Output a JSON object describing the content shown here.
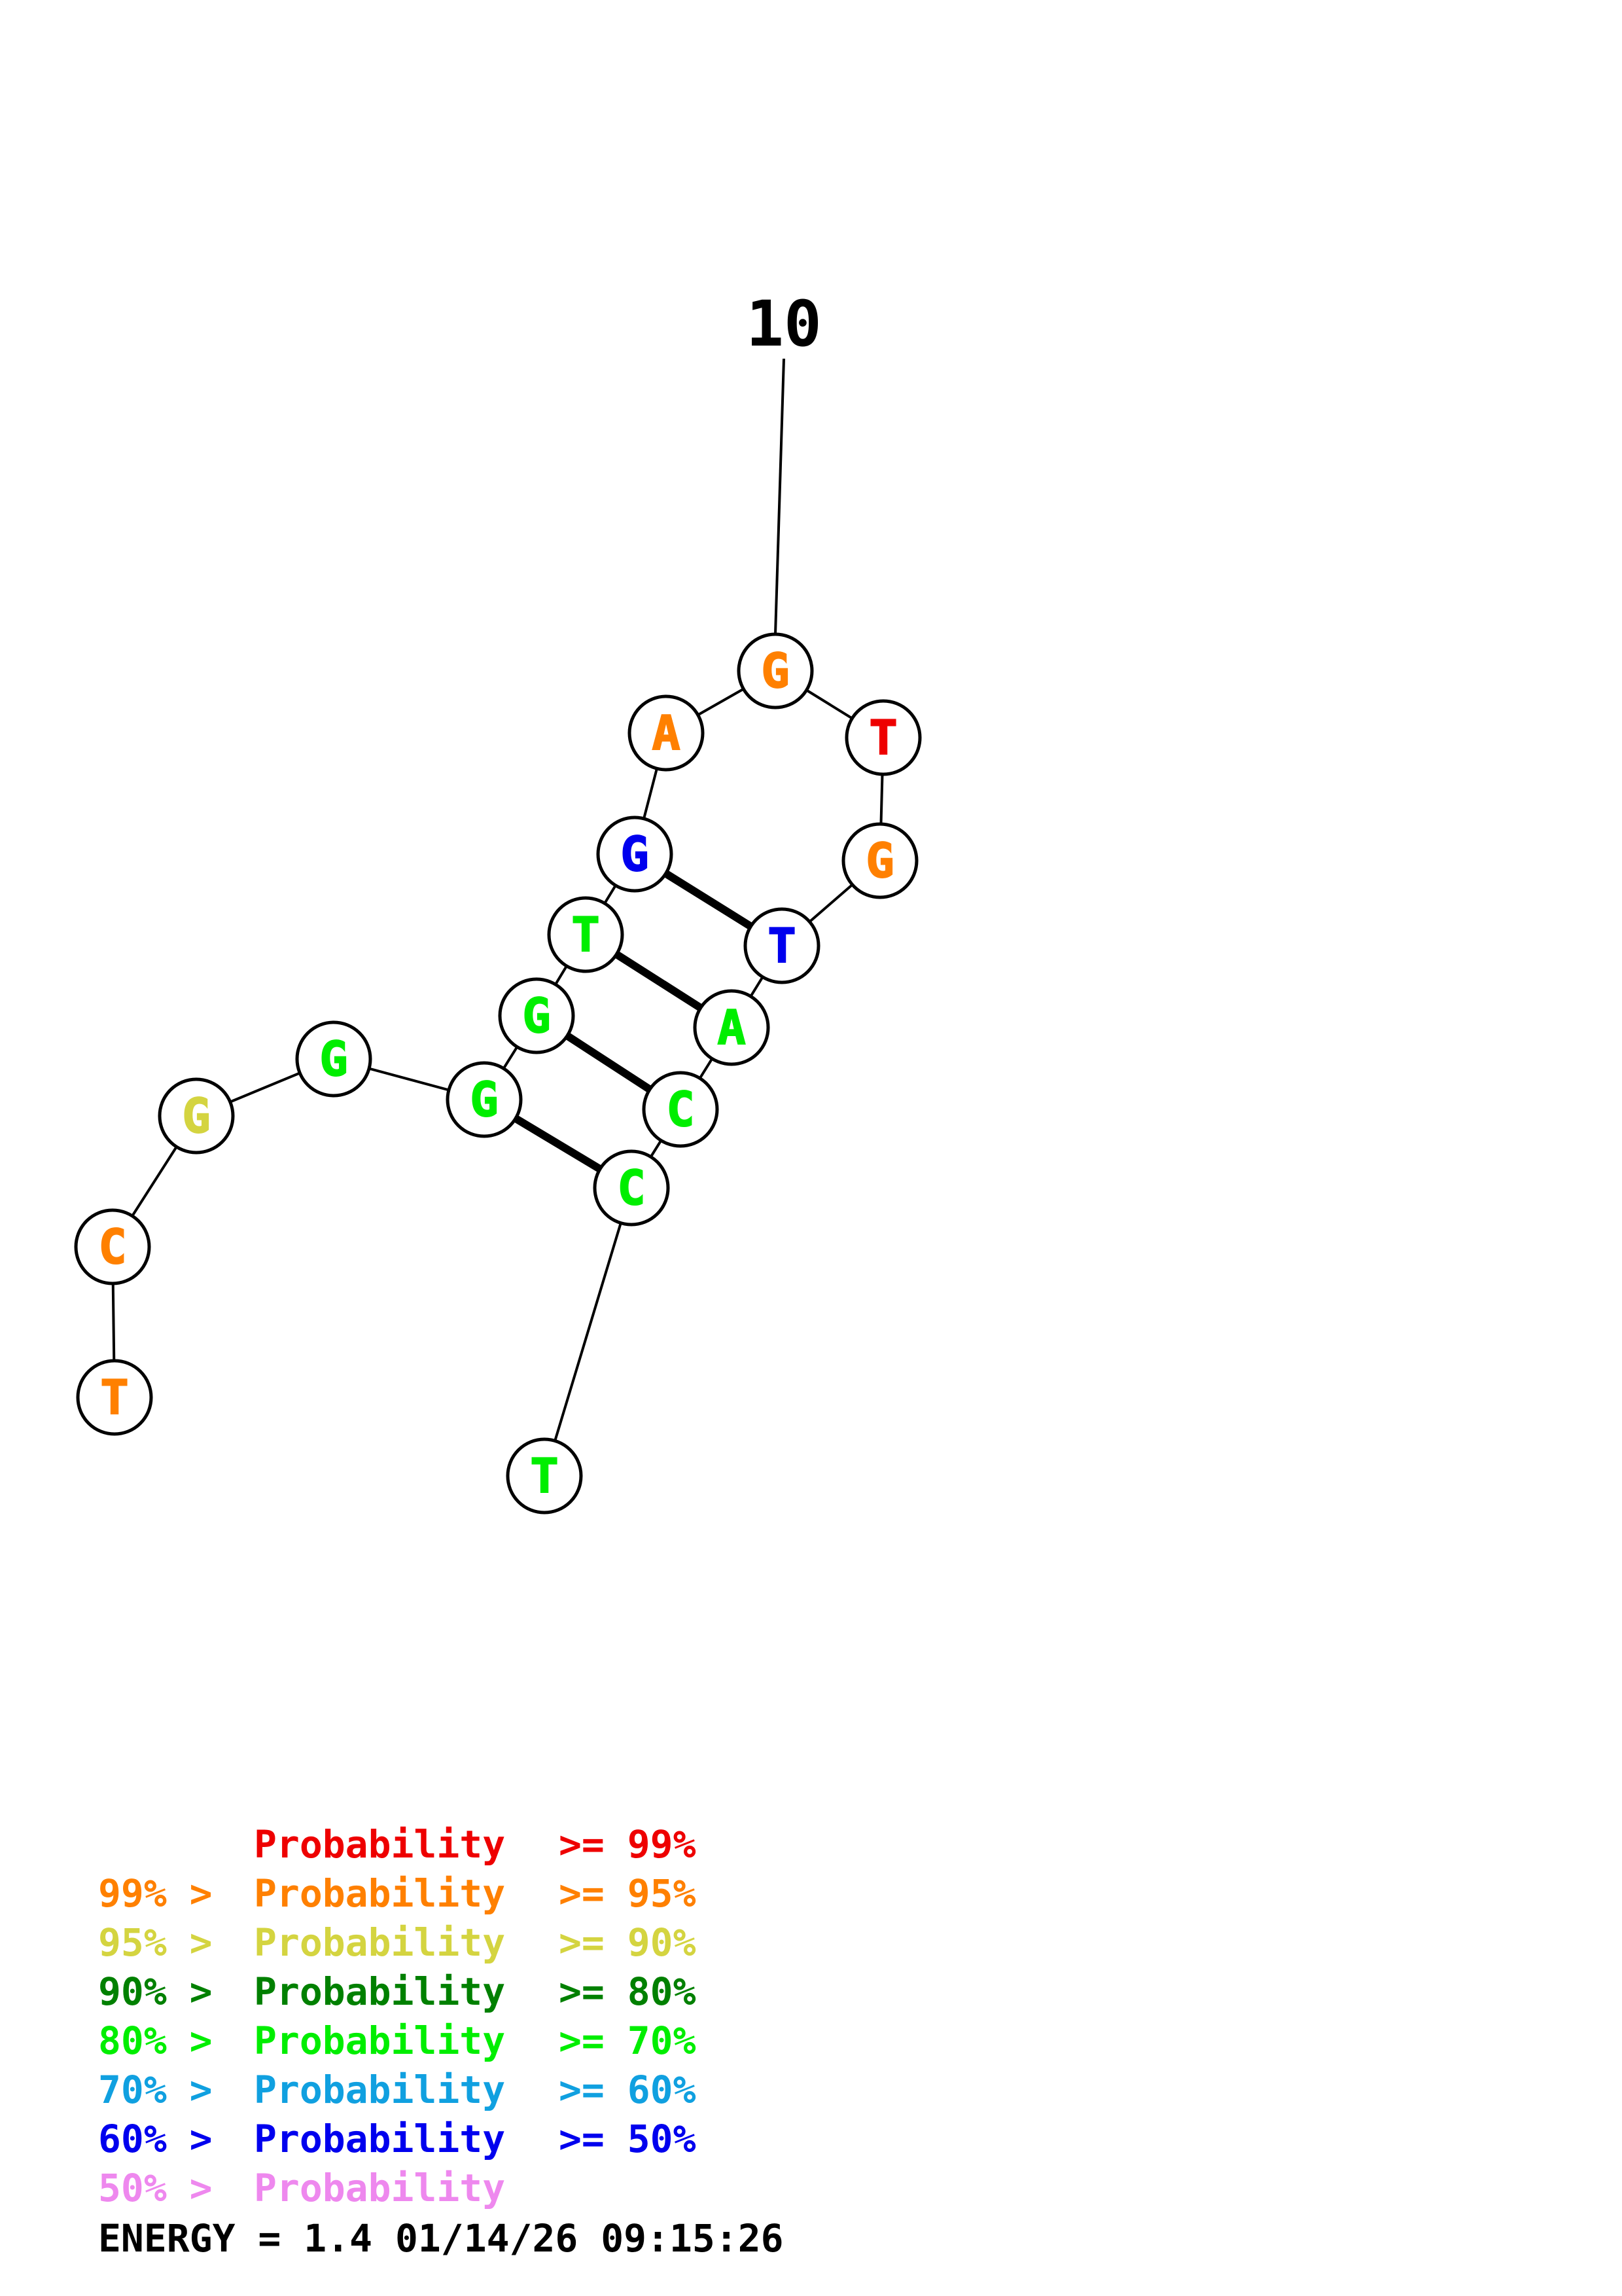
{
  "structure": {
    "nucleotides": [
      {
        "index": 1,
        "base": "T",
        "color": "#FF8000"
      },
      {
        "index": 2,
        "base": "C",
        "color": "#FF8000"
      },
      {
        "index": 3,
        "base": "G",
        "color": "#D4D440"
      },
      {
        "index": 4,
        "base": "G",
        "color": "#00EE00"
      },
      {
        "index": 5,
        "base": "G",
        "color": "#00EE00"
      },
      {
        "index": 6,
        "base": "G",
        "color": "#00EE00"
      },
      {
        "index": 7,
        "base": "T",
        "color": "#00EE00"
      },
      {
        "index": 8,
        "base": "G",
        "color": "#0000EE"
      },
      {
        "index": 9,
        "base": "A",
        "color": "#FF8000"
      },
      {
        "index": 10,
        "base": "G",
        "color": "#FF8000"
      },
      {
        "index": 11,
        "base": "T",
        "color": "#EE0000"
      },
      {
        "index": 12,
        "base": "G",
        "color": "#FF8000"
      },
      {
        "index": 13,
        "base": "T",
        "color": "#0000EE"
      },
      {
        "index": 14,
        "base": "A",
        "color": "#00EE00"
      },
      {
        "index": 15,
        "base": "C",
        "color": "#00EE00"
      },
      {
        "index": 16,
        "base": "C",
        "color": "#00EE00"
      },
      {
        "index": 17,
        "base": "T",
        "color": "#00EE00"
      }
    ],
    "base_pairs": [
      [
        5,
        16
      ],
      [
        6,
        15
      ],
      [
        7,
        14
      ],
      [
        8,
        13
      ]
    ],
    "position_markers": [
      {
        "index": 10,
        "label": "10"
      }
    ]
  },
  "legend": [
    {
      "prefix": "",
      "label": "Probability",
      "suffix": ">= 99%",
      "color": "#EE0000"
    },
    {
      "prefix": "99% >",
      "label": "Probability",
      "suffix": ">= 95%",
      "color": "#FF8000"
    },
    {
      "prefix": "95% >",
      "label": "Probability",
      "suffix": ">= 90%",
      "color": "#D4D440"
    },
    {
      "prefix": "90% >",
      "label": "Probability",
      "suffix": ">= 80%",
      "color": "#008000"
    },
    {
      "prefix": "80% >",
      "label": "Probability",
      "suffix": ">= 70%",
      "color": "#00EE00"
    },
    {
      "prefix": "70% >",
      "label": "Probability",
      "suffix": ">= 60%",
      "color": "#10A0E0"
    },
    {
      "prefix": "60% >",
      "label": "Probability",
      "suffix": ">= 50%",
      "color": "#0000EE"
    },
    {
      "prefix": "50% >",
      "label": "Probability",
      "suffix": "",
      "color": "#EE88EE"
    }
  ],
  "footer": {
    "energy": "ENERGY = 1.4  01/14/26 09:15:26"
  }
}
